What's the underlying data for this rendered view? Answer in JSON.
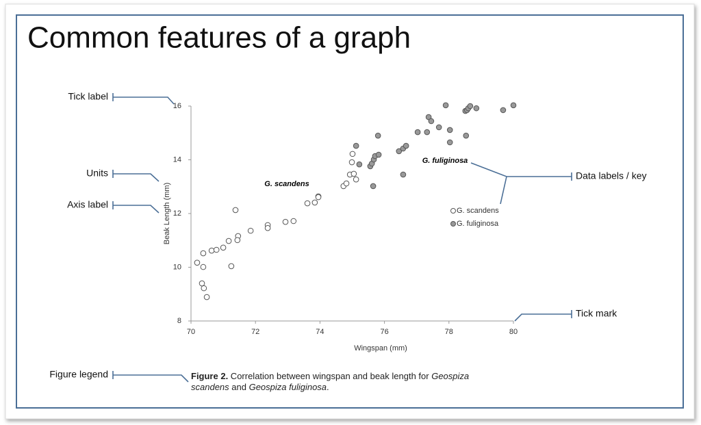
{
  "title": "Common features of a graph",
  "callouts": [
    "Tick label",
    "Units",
    "Axis label",
    "Data labels / key",
    "Tick mark",
    "Figure legend"
  ],
  "chart_data": {
    "type": "scatter",
    "x_label": "Wingspan (mm)",
    "y_label": "Beak Length (mm)",
    "xlim": [
      70,
      80
    ],
    "ylim": [
      8,
      16
    ],
    "xticks": [
      70,
      72,
      74,
      76,
      78,
      80
    ],
    "yticks": [
      8,
      10,
      12,
      14,
      16
    ],
    "series": [
      {
        "name": "G. scandens",
        "color": "#ffffff",
        "x": [
          70.19,
          70.38,
          70.38,
          70.34,
          70.4,
          70.49,
          70.64,
          70.79,
          71.0,
          71.17,
          71.25,
          71.38,
          71.46,
          71.44,
          71.85,
          72.38,
          72.38,
          72.93,
          73.18,
          73.61,
          73.84,
          73.95,
          73.95,
          74.73,
          74.82,
          74.93,
          74.99,
          75.01,
          75.05,
          75.12
        ],
        "values": [
          10.17,
          10.52,
          10.01,
          9.4,
          9.22,
          8.89,
          10.62,
          10.65,
          10.73,
          10.98,
          10.04,
          12.13,
          11.16,
          11.01,
          11.36,
          11.57,
          11.46,
          11.69,
          11.72,
          12.38,
          12.41,
          12.64,
          12.61,
          13.02,
          13.12,
          13.45,
          13.91,
          14.22,
          13.48,
          13.27
        ]
      },
      {
        "name": "G. fuliginosa",
        "color": "#999999",
        "x": [
          75.12,
          75.22,
          75.56,
          75.61,
          75.65,
          75.67,
          75.71,
          75.82,
          75.8,
          76.45,
          76.58,
          76.67,
          76.58,
          77.03,
          77.32,
          77.37,
          77.45,
          77.69,
          77.9,
          78.03,
          78.03,
          78.51,
          78.56,
          78.6,
          78.66,
          78.53,
          78.85,
          79.68,
          80.0
        ],
        "values": [
          14.52,
          13.83,
          13.76,
          13.86,
          13.02,
          14.01,
          14.14,
          14.19,
          14.9,
          14.32,
          14.42,
          14.52,
          13.45,
          15.03,
          15.03,
          15.59,
          15.44,
          15.21,
          16.03,
          15.11,
          14.65,
          15.82,
          15.85,
          15.92,
          16.0,
          14.9,
          15.92,
          15.85,
          16.03
        ]
      }
    ],
    "caption": [
      {
        "text": "Figure 2.",
        "style": "bold"
      },
      {
        "text": " Correlation between wingspan and beak length for ",
        "style": "normal"
      },
      {
        "text": "Geospiza scandens",
        "style": "italic"
      },
      {
        "text": " and ",
        "style": "normal"
      },
      {
        "text": "Geospiza fuliginosa",
        "style": "italic"
      },
      {
        "text": ".",
        "style": "normal"
      }
    ]
  }
}
